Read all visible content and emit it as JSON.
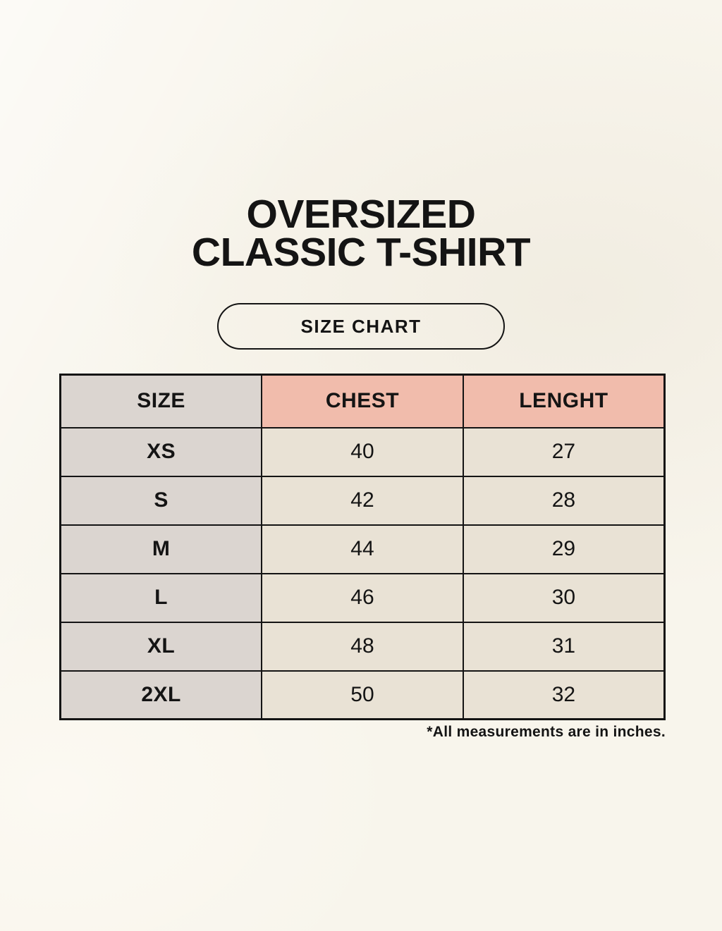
{
  "title": {
    "line1": "OVERSIZED",
    "line2": "CLASSIC T-SHIRT"
  },
  "badge": {
    "label": "SIZE CHART"
  },
  "size_table": {
    "columns": [
      "SIZE",
      "CHEST",
      "LENGHT"
    ],
    "rows": [
      [
        "XS",
        "40",
        "27"
      ],
      [
        "S",
        "42",
        "28"
      ],
      [
        "M",
        "44",
        "29"
      ],
      [
        "L",
        "46",
        "30"
      ],
      [
        "XL",
        "48",
        "31"
      ],
      [
        "2XL",
        "50",
        "32"
      ]
    ],
    "footnote": "*All measurements are in inches."
  },
  "chart_data": {
    "type": "table",
    "title": "OVERSIZED CLASSIC T-SHIRT — SIZE CHART",
    "columns": [
      "SIZE",
      "CHEST",
      "LENGHT"
    ],
    "rows": [
      [
        "XS",
        40,
        27
      ],
      [
        "S",
        42,
        28
      ],
      [
        "M",
        44,
        29
      ],
      [
        "L",
        46,
        30
      ],
      [
        "XL",
        48,
        31
      ],
      [
        "2XL",
        50,
        32
      ]
    ],
    "units_note": "*All measurements are in inches."
  },
  "colors": {
    "background": "#f8f5ec",
    "table_gray": "#dbd5d0",
    "table_pink": "#f1bcac",
    "table_cream": "#e9e2d5",
    "border": "#141414",
    "text": "#141414"
  }
}
